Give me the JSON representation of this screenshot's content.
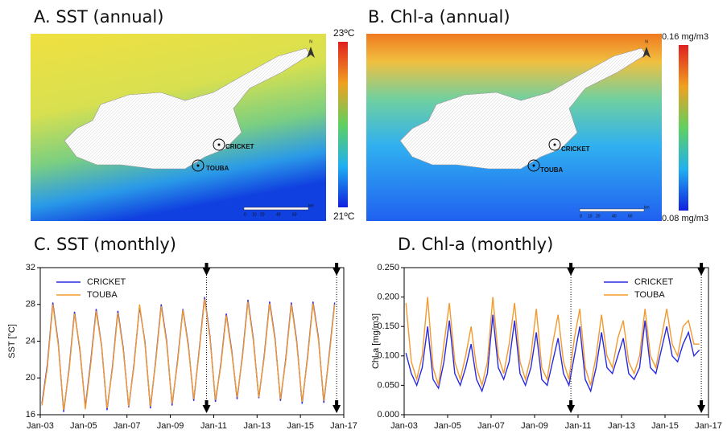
{
  "maps": [
    {
      "title": "A. SST (annual)",
      "colorbar_max": "23ºC",
      "colorbar_min": "21ºC",
      "north": "N",
      "stations": [
        "CRICKET",
        "TOUBA"
      ],
      "scale_labels": [
        "0",
        "10",
        "20",
        "40",
        "60",
        "km"
      ]
    },
    {
      "title": "B. Chl-a (annual)",
      "colorbar_max": "0.16 mg/m3",
      "colorbar_min": "0.08 mg/m3",
      "north": "N",
      "stations": [
        "CRICKET",
        "TOUBA"
      ],
      "scale_labels": [
        "0",
        "10",
        "20",
        "40",
        "60",
        "km"
      ]
    }
  ],
  "chart_data": [
    {
      "type": "line",
      "title": "C. SST (monthly)",
      "y_label": "SST [°C]",
      "legend": "top-left",
      "x": [
        2003.08,
        2003.33,
        2003.58,
        2003.83,
        2004.08,
        2004.33,
        2004.58,
        2004.83,
        2005.08,
        2005.33,
        2005.58,
        2005.83,
        2006.08,
        2006.33,
        2006.58,
        2006.83,
        2007.08,
        2007.33,
        2007.58,
        2007.83,
        2008.08,
        2008.33,
        2008.58,
        2008.83,
        2009.08,
        2009.33,
        2009.58,
        2009.83,
        2010.08,
        2010.33,
        2010.58,
        2010.83,
        2011.08,
        2011.33,
        2011.58,
        2011.83,
        2012.08,
        2012.33,
        2012.58,
        2012.83,
        2013.08,
        2013.33,
        2013.58,
        2013.83,
        2014.08,
        2014.33,
        2014.58,
        2014.83,
        2015.08,
        2015.33,
        2015.58,
        2015.83,
        2016.08,
        2016.33,
        2016.58
      ],
      "series": [
        {
          "name": "CRICKET",
          "color": "#2a2ae0",
          "values": [
            17.2,
            21.5,
            28.2,
            23.8,
            16.3,
            21.0,
            27.2,
            23.0,
            16.8,
            21.8,
            27.5,
            23.5,
            16.5,
            21.2,
            27.3,
            23.2,
            16.8,
            21.6,
            27.8,
            23.9,
            16.7,
            22.0,
            28.0,
            24.0,
            17.0,
            21.8,
            27.5,
            23.6,
            17.5,
            23.0,
            28.8,
            24.5,
            17.4,
            21.5,
            27.0,
            23.0,
            17.7,
            22.5,
            28.5,
            24.2,
            17.8,
            22.4,
            28.3,
            24.3,
            17.5,
            22.2,
            28.2,
            24.0,
            17.2,
            22.3,
            28.3,
            24.4,
            17.3,
            22.6,
            28.2
          ]
        },
        {
          "name": "TOUBA",
          "color": "#f39a2e",
          "values": [
            17.0,
            21.2,
            28.0,
            23.6,
            16.5,
            20.8,
            27.0,
            23.2,
            16.6,
            21.5,
            27.3,
            23.4,
            16.7,
            21.0,
            27.1,
            23.0,
            16.9,
            21.4,
            28.0,
            23.7,
            16.9,
            21.8,
            27.8,
            23.8,
            17.2,
            21.6,
            27.4,
            23.4,
            17.7,
            22.8,
            28.6,
            24.3,
            17.6,
            21.3,
            26.8,
            22.8,
            17.9,
            22.3,
            28.3,
            24.0,
            17.9,
            22.2,
            28.1,
            24.1,
            17.7,
            22.0,
            28.0,
            23.8,
            17.4,
            22.1,
            28.1,
            24.2,
            17.5,
            22.4,
            28.0
          ]
        }
      ],
      "event_x": [
        2010.67,
        2016.67
      ],
      "xlim": [
        2003,
        2017
      ],
      "xticks": [
        {
          "value": 2003,
          "label": "Jan-03"
        },
        {
          "value": 2005,
          "label": "Jan-05"
        },
        {
          "value": 2007,
          "label": "Jan-07"
        },
        {
          "value": 2009,
          "label": "Jan-09"
        },
        {
          "value": 2011,
          "label": "Jan-11"
        },
        {
          "value": 2013,
          "label": "Jan-13"
        },
        {
          "value": 2015,
          "label": "Jan-15"
        },
        {
          "value": 2017,
          "label": "Jan-17"
        }
      ],
      "ylim": [
        16,
        32
      ],
      "yticks": [
        16,
        20,
        24,
        28,
        32
      ]
    },
    {
      "type": "line",
      "title": "D. Chl-a (monthly)",
      "y_label": "Chl-a [mg/m3]",
      "legend": "top-right",
      "x": [
        2003.08,
        2003.33,
        2003.58,
        2003.83,
        2004.08,
        2004.33,
        2004.58,
        2004.83,
        2005.08,
        2005.33,
        2005.58,
        2005.83,
        2006.08,
        2006.33,
        2006.58,
        2006.83,
        2007.08,
        2007.33,
        2007.58,
        2007.83,
        2008.08,
        2008.33,
        2008.58,
        2008.83,
        2009.08,
        2009.33,
        2009.58,
        2009.83,
        2010.08,
        2010.33,
        2010.58,
        2010.83,
        2011.08,
        2011.33,
        2011.58,
        2011.83,
        2012.08,
        2012.33,
        2012.58,
        2012.83,
        2013.08,
        2013.33,
        2013.58,
        2013.83,
        2014.08,
        2014.33,
        2014.58,
        2014.83,
        2015.08,
        2015.33,
        2015.58,
        2015.83,
        2016.08,
        2016.33,
        2016.58
      ],
      "series": [
        {
          "name": "CRICKET",
          "color": "#2a2ae0",
          "values": [
            0.105,
            0.07,
            0.05,
            0.08,
            0.15,
            0.06,
            0.045,
            0.09,
            0.16,
            0.07,
            0.05,
            0.08,
            0.12,
            0.06,
            0.04,
            0.07,
            0.17,
            0.08,
            0.06,
            0.09,
            0.16,
            0.07,
            0.05,
            0.08,
            0.14,
            0.06,
            0.05,
            0.09,
            0.13,
            0.07,
            0.05,
            0.1,
            0.15,
            0.06,
            0.04,
            0.08,
            0.14,
            0.08,
            0.07,
            0.1,
            0.13,
            0.07,
            0.06,
            0.08,
            0.16,
            0.08,
            0.07,
            0.11,
            0.15,
            0.1,
            0.09,
            0.12,
            0.14,
            0.1,
            0.11
          ]
        },
        {
          "name": "TOUBA",
          "color": "#f39a2e",
          "values": [
            0.19,
            0.09,
            0.06,
            0.1,
            0.2,
            0.08,
            0.05,
            0.12,
            0.19,
            0.09,
            0.06,
            0.1,
            0.15,
            0.08,
            0.05,
            0.09,
            0.2,
            0.1,
            0.07,
            0.12,
            0.19,
            0.09,
            0.06,
            0.1,
            0.18,
            0.08,
            0.06,
            0.12,
            0.17,
            0.09,
            0.06,
            0.13,
            0.18,
            0.08,
            0.05,
            0.1,
            0.17,
            0.1,
            0.08,
            0.13,
            0.16,
            0.09,
            0.07,
            0.1,
            0.18,
            0.1,
            0.08,
            0.13,
            0.18,
            0.12,
            0.1,
            0.15,
            0.16,
            0.12,
            0.12
          ]
        }
      ],
      "event_x": [
        2010.67,
        2016.67
      ],
      "xlim": [
        2003,
        2017
      ],
      "xticks": [
        {
          "value": 2003,
          "label": "Jan-03"
        },
        {
          "value": 2005,
          "label": "Jan-05"
        },
        {
          "value": 2007,
          "label": "Jan-07"
        },
        {
          "value": 2009,
          "label": "Jan-09"
        },
        {
          "value": 2011,
          "label": "Jan-11"
        },
        {
          "value": 2013,
          "label": "Jan-13"
        },
        {
          "value": 2015,
          "label": "Jan-15"
        },
        {
          "value": 2017,
          "label": "Jan-17"
        }
      ],
      "ylim": [
        0,
        0.25
      ],
      "yticks": [
        {
          "value": 0,
          "label": "0.000"
        },
        {
          "value": 0.05,
          "label": "0.050"
        },
        {
          "value": 0.1,
          "label": "0.100"
        },
        {
          "value": 0.15,
          "label": "0.150"
        },
        {
          "value": 0.2,
          "label": "0.200"
        },
        {
          "value": 0.25,
          "label": "0.250"
        }
      ]
    }
  ]
}
